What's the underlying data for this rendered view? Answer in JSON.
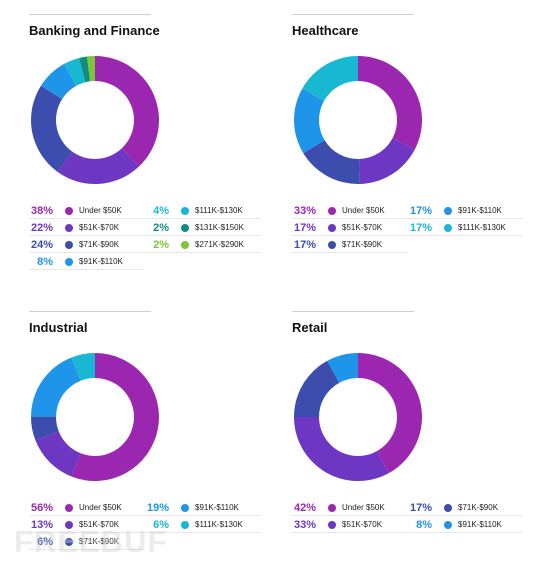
{
  "watermark": "FREEBUF",
  "chart_data": [
    {
      "type": "pie",
      "title": "Banking and Finance",
      "slices": [
        {
          "name": "Under $50K",
          "value": 38,
          "label": "38%",
          "color": "#9b27b0"
        },
        {
          "name": "$51K-$70K",
          "value": 22,
          "label": "22%",
          "color": "#6d37c3"
        },
        {
          "name": "$71K-$90K",
          "value": 24,
          "label": "24%",
          "color": "#3c4dad"
        },
        {
          "name": "$91K-$110K",
          "value": 8,
          "label": "8%",
          "color": "#1f95e9"
        },
        {
          "name": "$111K-$130K",
          "value": 4,
          "label": "4%",
          "color": "#19b8d2"
        },
        {
          "name": "$131K-$150K",
          "value": 2,
          "label": "2%",
          "color": "#118c7e"
        },
        {
          "name": "$271K-$290K",
          "value": 2,
          "label": "2%",
          "color": "#7cc63a"
        }
      ]
    },
    {
      "type": "pie",
      "title": "Healthcare",
      "slices": [
        {
          "name": "Under $50K",
          "value": 33,
          "label": "33%",
          "color": "#9b27b0"
        },
        {
          "name": "$51K-$70K",
          "value": 17,
          "label": "17%",
          "color": "#6d37c3"
        },
        {
          "name": "$71K-$90K",
          "value": 17,
          "label": "17%",
          "color": "#3c4dad"
        },
        {
          "name": "$91K-$110K",
          "value": 17,
          "label": "17%",
          "color": "#1f95e9"
        },
        {
          "name": "$111K-$130K",
          "value": 17,
          "label": "17%",
          "color": "#19b8d2"
        }
      ]
    },
    {
      "type": "pie",
      "title": "Industrial",
      "slices": [
        {
          "name": "Under $50K",
          "value": 56,
          "label": "56%",
          "color": "#9b27b0"
        },
        {
          "name": "$51K-$70K",
          "value": 13,
          "label": "13%",
          "color": "#6d37c3"
        },
        {
          "name": "$71K-$90K",
          "value": 6,
          "label": "6%",
          "color": "#3c4dad"
        },
        {
          "name": "$91K-$110K",
          "value": 19,
          "label": "19%",
          "color": "#1f95e9"
        },
        {
          "name": "$111K-$130K",
          "value": 6,
          "label": "6%",
          "color": "#19b8d2"
        }
      ]
    },
    {
      "type": "pie",
      "title": "Retail",
      "slices": [
        {
          "name": "Under $50K",
          "value": 42,
          "label": "42%",
          "color": "#9b27b0"
        },
        {
          "name": "$51K-$70K",
          "value": 33,
          "label": "33%",
          "color": "#6d37c3"
        },
        {
          "name": "$71K-$90K",
          "value": 17,
          "label": "17%",
          "color": "#3c4dad"
        },
        {
          "name": "$91K-$110K",
          "value": 8,
          "label": "8%",
          "color": "#1f95e9"
        }
      ]
    }
  ]
}
